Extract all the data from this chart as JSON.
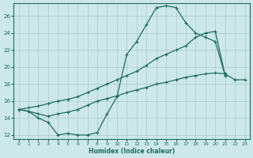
{
  "xlabel": "Humidex (Indice chaleur)",
  "bg_color": "#cde8e8",
  "line_color": "#1e6b60",
  "grid_color": "#aecfcf",
  "xlim": [
    -0.5,
    23.5
  ],
  "ylim": [
    11.5,
    27.5
  ],
  "xticks": [
    0,
    1,
    2,
    3,
    4,
    5,
    6,
    7,
    8,
    9,
    10,
    11,
    12,
    13,
    14,
    15,
    16,
    17,
    18,
    19,
    20,
    21,
    22,
    23
  ],
  "yticks": [
    12,
    14,
    16,
    18,
    20,
    22,
    24,
    26
  ],
  "curve1_x": [
    0,
    1,
    2,
    3,
    4,
    5,
    6,
    7,
    8,
    9,
    10,
    11,
    12,
    13,
    14,
    15,
    16,
    17,
    18,
    19,
    20,
    21
  ],
  "curve1_y": [
    15,
    14.8,
    14.0,
    13.5,
    12.0,
    12.2,
    12.0,
    12.0,
    12.3,
    14.5,
    16.5,
    21.5,
    23.0,
    25.0,
    27.0,
    27.2,
    27.0,
    25.2,
    24.0,
    23.5,
    23.0,
    19.0
  ],
  "curve2_x": [
    0,
    1,
    2,
    3,
    4,
    5,
    6,
    7,
    8,
    9,
    10,
    11,
    12,
    13,
    14,
    15,
    16,
    17,
    18,
    19,
    20,
    21
  ],
  "curve2_y": [
    15,
    15.2,
    15.4,
    15.7,
    16.0,
    16.2,
    16.5,
    17.0,
    17.5,
    18.0,
    18.5,
    19.0,
    19.5,
    20.2,
    21.0,
    21.5,
    22.0,
    22.5,
    23.5,
    24.0,
    24.2,
    19.0
  ],
  "curve3_x": [
    0,
    1,
    2,
    3,
    4,
    5,
    6,
    7,
    8,
    9,
    10,
    11,
    12,
    13,
    14,
    15,
    16,
    17,
    18,
    19,
    20,
    21,
    22,
    23
  ],
  "curve3_y": [
    15,
    14.8,
    14.5,
    14.2,
    14.5,
    14.7,
    15.0,
    15.5,
    16.0,
    16.3,
    16.6,
    17.0,
    17.3,
    17.6,
    18.0,
    18.2,
    18.5,
    18.8,
    19.0,
    19.2,
    19.3,
    19.2,
    18.5,
    18.5
  ]
}
